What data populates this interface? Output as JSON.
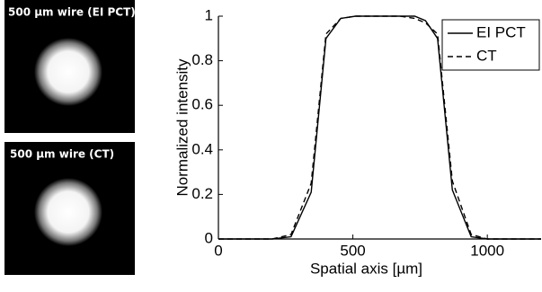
{
  "panels": [
    {
      "label": "500 µm wire (EI PCT)"
    },
    {
      "label": "500 µm wire (CT)"
    }
  ],
  "chart_data": {
    "type": "line",
    "xlabel": "Spatial axis [µm]",
    "ylabel": "Normalized intensity",
    "x": [
      0,
      100,
      200,
      270,
      345,
      400,
      455,
      510,
      565,
      620,
      675,
      730,
      770,
      815,
      870,
      940,
      1000,
      1100,
      1200
    ],
    "series": [
      {
        "name": "EI PCT",
        "color": "#000000",
        "linestyle": "solid",
        "values": [
          0,
          0,
          0,
          0.01,
          0.21,
          0.9,
          0.99,
          1,
          1,
          1,
          1,
          1,
          0.98,
          0.9,
          0.22,
          0.01,
          0,
          0,
          0
        ]
      },
      {
        "name": "CT",
        "color": "#000000",
        "linestyle": "dashed",
        "values": [
          0,
          0,
          0,
          0.02,
          0.25,
          0.92,
          0.99,
          1,
          1,
          1,
          1,
          0.99,
          0.97,
          0.92,
          0.26,
          0.02,
          0,
          0,
          0
        ]
      }
    ],
    "xlim": [
      0,
      1200
    ],
    "xticks": [
      0,
      500,
      1000
    ],
    "ylim": [
      0,
      1
    ],
    "yticks": [
      0,
      0.2,
      0.4,
      0.6,
      0.8,
      1
    ],
    "legend": "upper right"
  }
}
